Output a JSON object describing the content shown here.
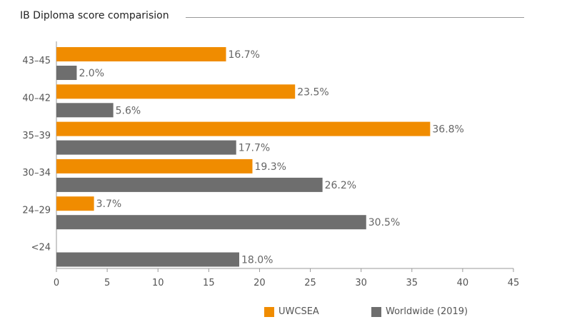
{
  "chart_data": {
    "type": "bar",
    "orientation": "horizontal",
    "title": "IB Diploma score comparision",
    "categories": [
      "43–45",
      "40–42",
      "35–39",
      "30–34",
      "24–29",
      "<24"
    ],
    "series": [
      {
        "name": "UWCSEA",
        "color": "#f08c00",
        "values": [
          16.7,
          23.5,
          36.8,
          19.3,
          3.7,
          null
        ],
        "labels": [
          "16.7%",
          "23.5%",
          "36.8%",
          "19.3%",
          "3.7%",
          ""
        ]
      },
      {
        "name": "Worldwide (2019)",
        "color": "#6e6e6e",
        "values": [
          2.0,
          5.6,
          17.7,
          26.2,
          30.5,
          18.0
        ],
        "labels": [
          "2.0%",
          "5.6%",
          "17.7%",
          "26.2%",
          "30.5%",
          "18.0%"
        ]
      }
    ],
    "xlim": [
      0,
      45
    ],
    "xticks": [
      "0",
      "5",
      "10",
      "15",
      "20",
      "25",
      "30",
      "35",
      "40",
      "45"
    ],
    "xlabel": "",
    "ylabel": "",
    "legend_position": "bottom-right"
  }
}
